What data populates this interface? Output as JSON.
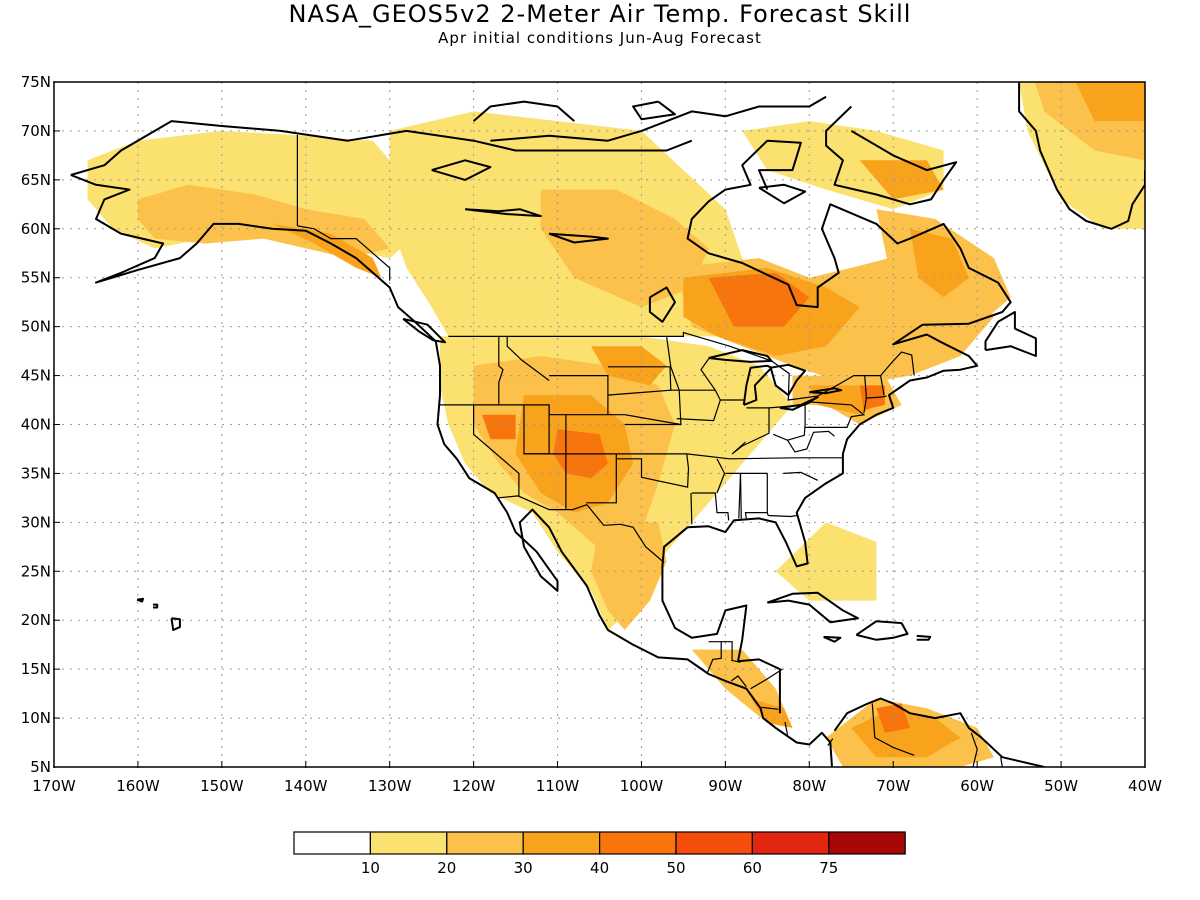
{
  "title": "NASA_GEOS5v2 2-Meter Air Temp. Forecast Skill",
  "subtitle": "Apr initial conditions  Jun-Aug Forecast",
  "map": {
    "lon_range": [
      -170,
      -40
    ],
    "lat_range": [
      5,
      75
    ],
    "lat_ticks": [
      {
        "value": 75,
        "label": "75N"
      },
      {
        "value": 70,
        "label": "70N"
      },
      {
        "value": 65,
        "label": "65N"
      },
      {
        "value": 60,
        "label": "60N"
      },
      {
        "value": 55,
        "label": "55N"
      },
      {
        "value": 50,
        "label": "50N"
      },
      {
        "value": 45,
        "label": "45N"
      },
      {
        "value": 40,
        "label": "40N"
      },
      {
        "value": 35,
        "label": "35N"
      },
      {
        "value": 30,
        "label": "30N"
      },
      {
        "value": 25,
        "label": "25N"
      },
      {
        "value": 20,
        "label": "20N"
      },
      {
        "value": 15,
        "label": "15N"
      },
      {
        "value": 10,
        "label": "10N"
      },
      {
        "value": 5,
        "label": "5N"
      }
    ],
    "lon_ticks": [
      {
        "value": -170,
        "label": "170W"
      },
      {
        "value": -160,
        "label": "160W"
      },
      {
        "value": -150,
        "label": "150W"
      },
      {
        "value": -140,
        "label": "140W"
      },
      {
        "value": -130,
        "label": "130W"
      },
      {
        "value": -120,
        "label": "120W"
      },
      {
        "value": -110,
        "label": "110W"
      },
      {
        "value": -100,
        "label": "100W"
      },
      {
        "value": -90,
        "label": "90W"
      },
      {
        "value": -80,
        "label": "80W"
      },
      {
        "value": -70,
        "label": "70W"
      },
      {
        "value": -60,
        "label": "60W"
      },
      {
        "value": -50,
        "label": "50W"
      },
      {
        "value": -40,
        "label": "40W"
      }
    ],
    "grid": true
  },
  "colorbar": {
    "colors": [
      "#ffffff",
      "#fbe16f",
      "#fbc14a",
      "#f9a31c",
      "#f8740c",
      "#f54d0c",
      "#e3260f",
      "#a80707"
    ],
    "labels": [
      "10",
      "20",
      "30",
      "40",
      "50",
      "60",
      "75"
    ]
  }
}
